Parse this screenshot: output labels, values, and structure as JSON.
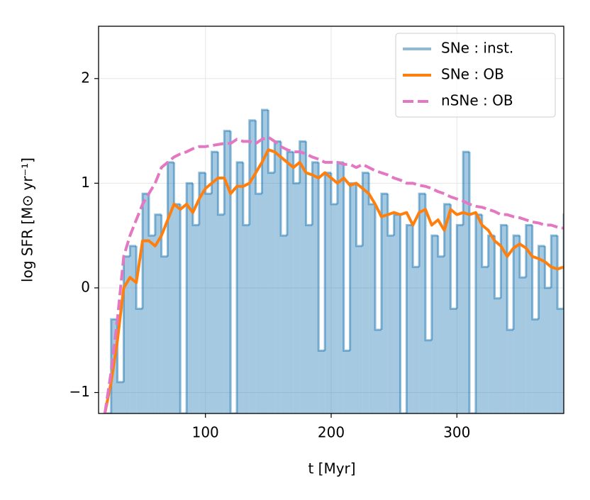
{
  "chart_data": {
    "type": "line",
    "xlabel": "t [Myr]",
    "ylabel": "log SFR [M⊙ yr⁻¹]",
    "x": [
      20,
      25,
      30,
      35,
      40,
      45,
      50,
      55,
      60,
      65,
      70,
      75,
      80,
      85,
      90,
      95,
      100,
      105,
      110,
      115,
      120,
      125,
      130,
      135,
      140,
      145,
      150,
      155,
      160,
      165,
      170,
      175,
      180,
      185,
      190,
      195,
      200,
      205,
      210,
      215,
      220,
      225,
      230,
      235,
      240,
      245,
      250,
      255,
      260,
      265,
      270,
      275,
      280,
      285,
      290,
      295,
      300,
      305,
      310,
      315,
      320,
      325,
      330,
      335,
      340,
      345,
      350,
      355,
      360,
      365,
      370,
      375,
      380,
      385
    ],
    "series": [
      {
        "name": "SNe : inst.",
        "color": "#1f77b4",
        "style": "steps-filled",
        "values": [
          -1.2,
          -0.3,
          -0.9,
          0.3,
          0.4,
          -0.2,
          0.9,
          0.5,
          0.7,
          0.3,
          1.2,
          0.8,
          -1.2,
          1.0,
          0.6,
          1.1,
          0.9,
          1.3,
          0.7,
          1.5,
          -1.2,
          1.2,
          0.6,
          1.6,
          0.9,
          1.7,
          1.1,
          1.4,
          0.5,
          1.3,
          1.0,
          1.4,
          0.6,
          1.2,
          -0.6,
          1.1,
          0.8,
          1.2,
          -0.6,
          1.0,
          0.4,
          1.1,
          0.8,
          -0.4,
          0.9,
          0.5,
          0.7,
          -1.2,
          0.6,
          0.2,
          0.9,
          -0.5,
          0.5,
          0.3,
          0.8,
          -0.2,
          0.6,
          1.3,
          -1.2,
          0.7,
          0.2,
          0.5,
          -0.1,
          0.6,
          -0.4,
          0.5,
          0.1,
          0.6,
          -0.3,
          0.4,
          0.0,
          0.5,
          -0.2,
          0.7
        ]
      },
      {
        "name": "SNe : OB",
        "color": "#ff7f0e",
        "style": "solid",
        "values": [
          -1.2,
          -0.9,
          -0.5,
          0.0,
          0.1,
          0.05,
          0.45,
          0.45,
          0.4,
          0.5,
          0.65,
          0.8,
          0.75,
          0.8,
          0.72,
          0.85,
          0.95,
          1.0,
          1.05,
          1.05,
          0.9,
          0.97,
          0.97,
          1.0,
          1.1,
          1.2,
          1.32,
          1.3,
          1.25,
          1.2,
          1.15,
          1.2,
          1.1,
          1.08,
          1.05,
          1.1,
          1.05,
          1.0,
          1.05,
          0.98,
          1.0,
          0.95,
          0.9,
          0.8,
          0.68,
          0.7,
          0.72,
          0.7,
          0.72,
          0.6,
          0.72,
          0.75,
          0.6,
          0.65,
          0.55,
          0.75,
          0.7,
          0.72,
          0.7,
          0.72,
          0.6,
          0.55,
          0.45,
          0.4,
          0.3,
          0.38,
          0.42,
          0.38,
          0.3,
          0.28,
          0.25,
          0.2,
          0.18,
          0.2
        ]
      },
      {
        "name": "nSNe : OB",
        "color": "#e377c2",
        "style": "dashed",
        "values": [
          -1.2,
          -0.8,
          -0.3,
          0.3,
          0.5,
          0.65,
          0.8,
          0.9,
          1.0,
          1.15,
          1.2,
          1.25,
          1.28,
          1.3,
          1.33,
          1.35,
          1.35,
          1.36,
          1.37,
          1.38,
          1.38,
          1.42,
          1.4,
          1.4,
          1.38,
          1.42,
          1.44,
          1.4,
          1.35,
          1.32,
          1.3,
          1.3,
          1.28,
          1.25,
          1.23,
          1.2,
          1.2,
          1.2,
          1.18,
          1.18,
          1.15,
          1.18,
          1.15,
          1.12,
          1.1,
          1.08,
          1.05,
          1.03,
          1.0,
          1.0,
          0.98,
          0.97,
          0.95,
          0.92,
          0.9,
          0.87,
          0.85,
          0.83,
          0.8,
          0.78,
          0.77,
          0.75,
          0.73,
          0.7,
          0.7,
          0.68,
          0.67,
          0.65,
          0.63,
          0.62,
          0.6,
          0.6,
          0.58,
          0.57
        ]
      }
    ],
    "xlim": [
      15,
      385
    ],
    "ylim": [
      -1.2,
      2.5
    ],
    "xticks": [
      100,
      200,
      300
    ],
    "yticks": [
      {
        "value": -1,
        "label": "−1"
      },
      0,
      1,
      2
    ],
    "grid": true,
    "legend": "upper right"
  }
}
